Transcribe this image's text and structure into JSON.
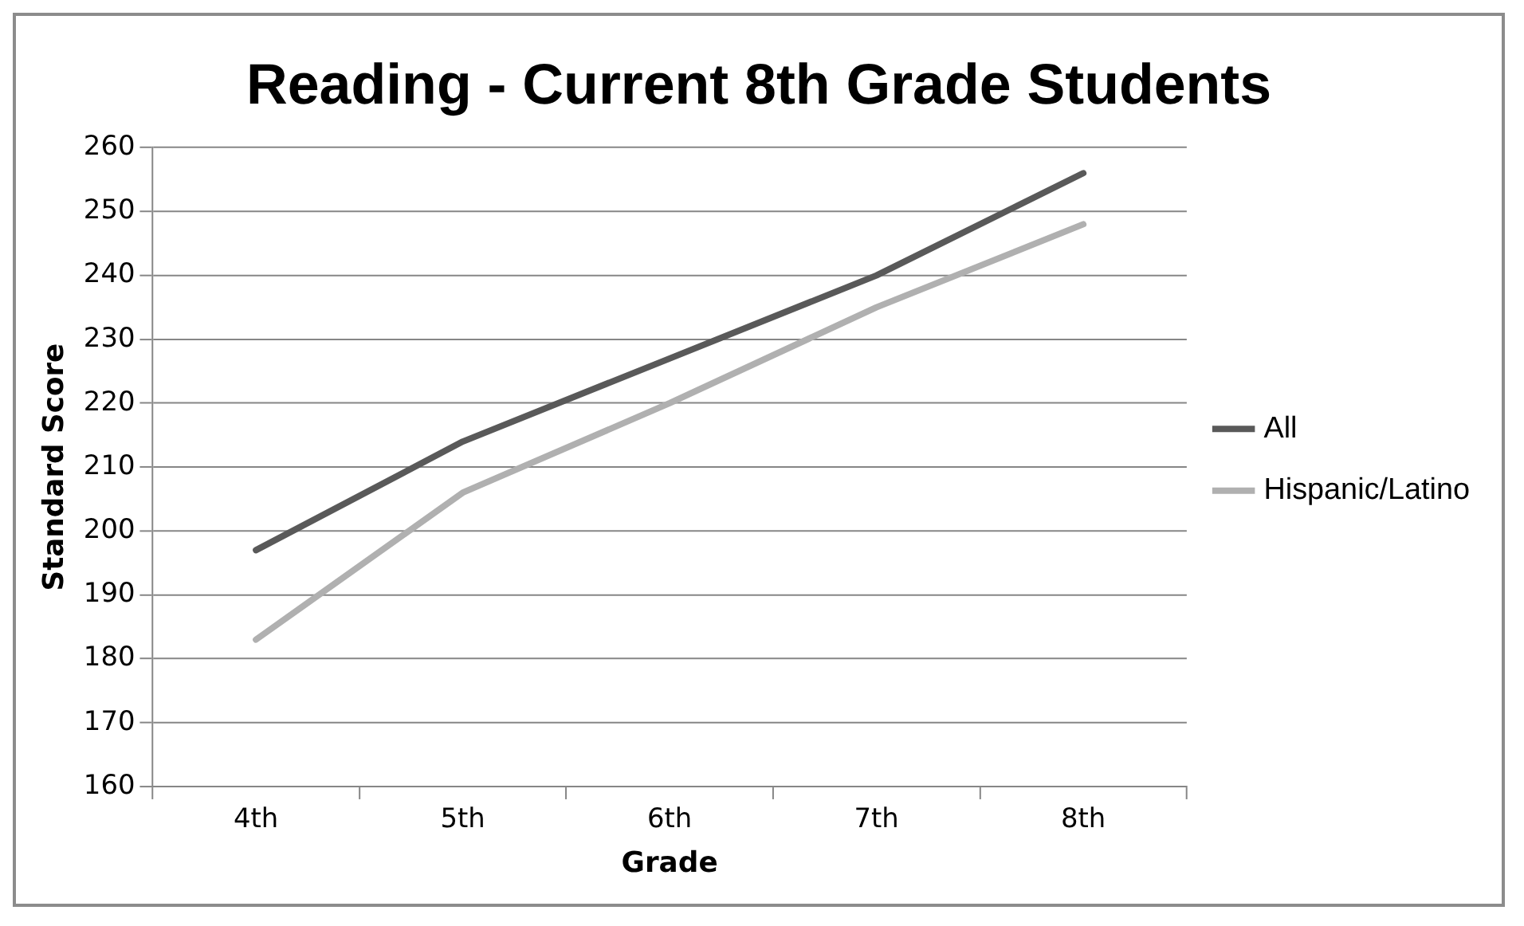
{
  "chart_data": {
    "type": "line",
    "title": "Reading - Current 8th Grade Students",
    "xlabel": "Grade",
    "ylabel": "Standard Score",
    "categories": [
      "4th",
      "5th",
      "6th",
      "7th",
      "8th"
    ],
    "series": [
      {
        "name": "All",
        "color": "#595959",
        "values": [
          197,
          214,
          227,
          240,
          256
        ]
      },
      {
        "name": "Hispanic/Latino",
        "color": "#b0b0b0",
        "values": [
          183,
          206,
          220,
          235,
          248
        ]
      }
    ],
    "ylim": [
      160,
      260
    ],
    "yticks": [
      160,
      170,
      180,
      190,
      200,
      210,
      220,
      230,
      240,
      250,
      260
    ],
    "grid": "y",
    "legend": "right",
    "marker": "none",
    "line_style": "solid"
  }
}
